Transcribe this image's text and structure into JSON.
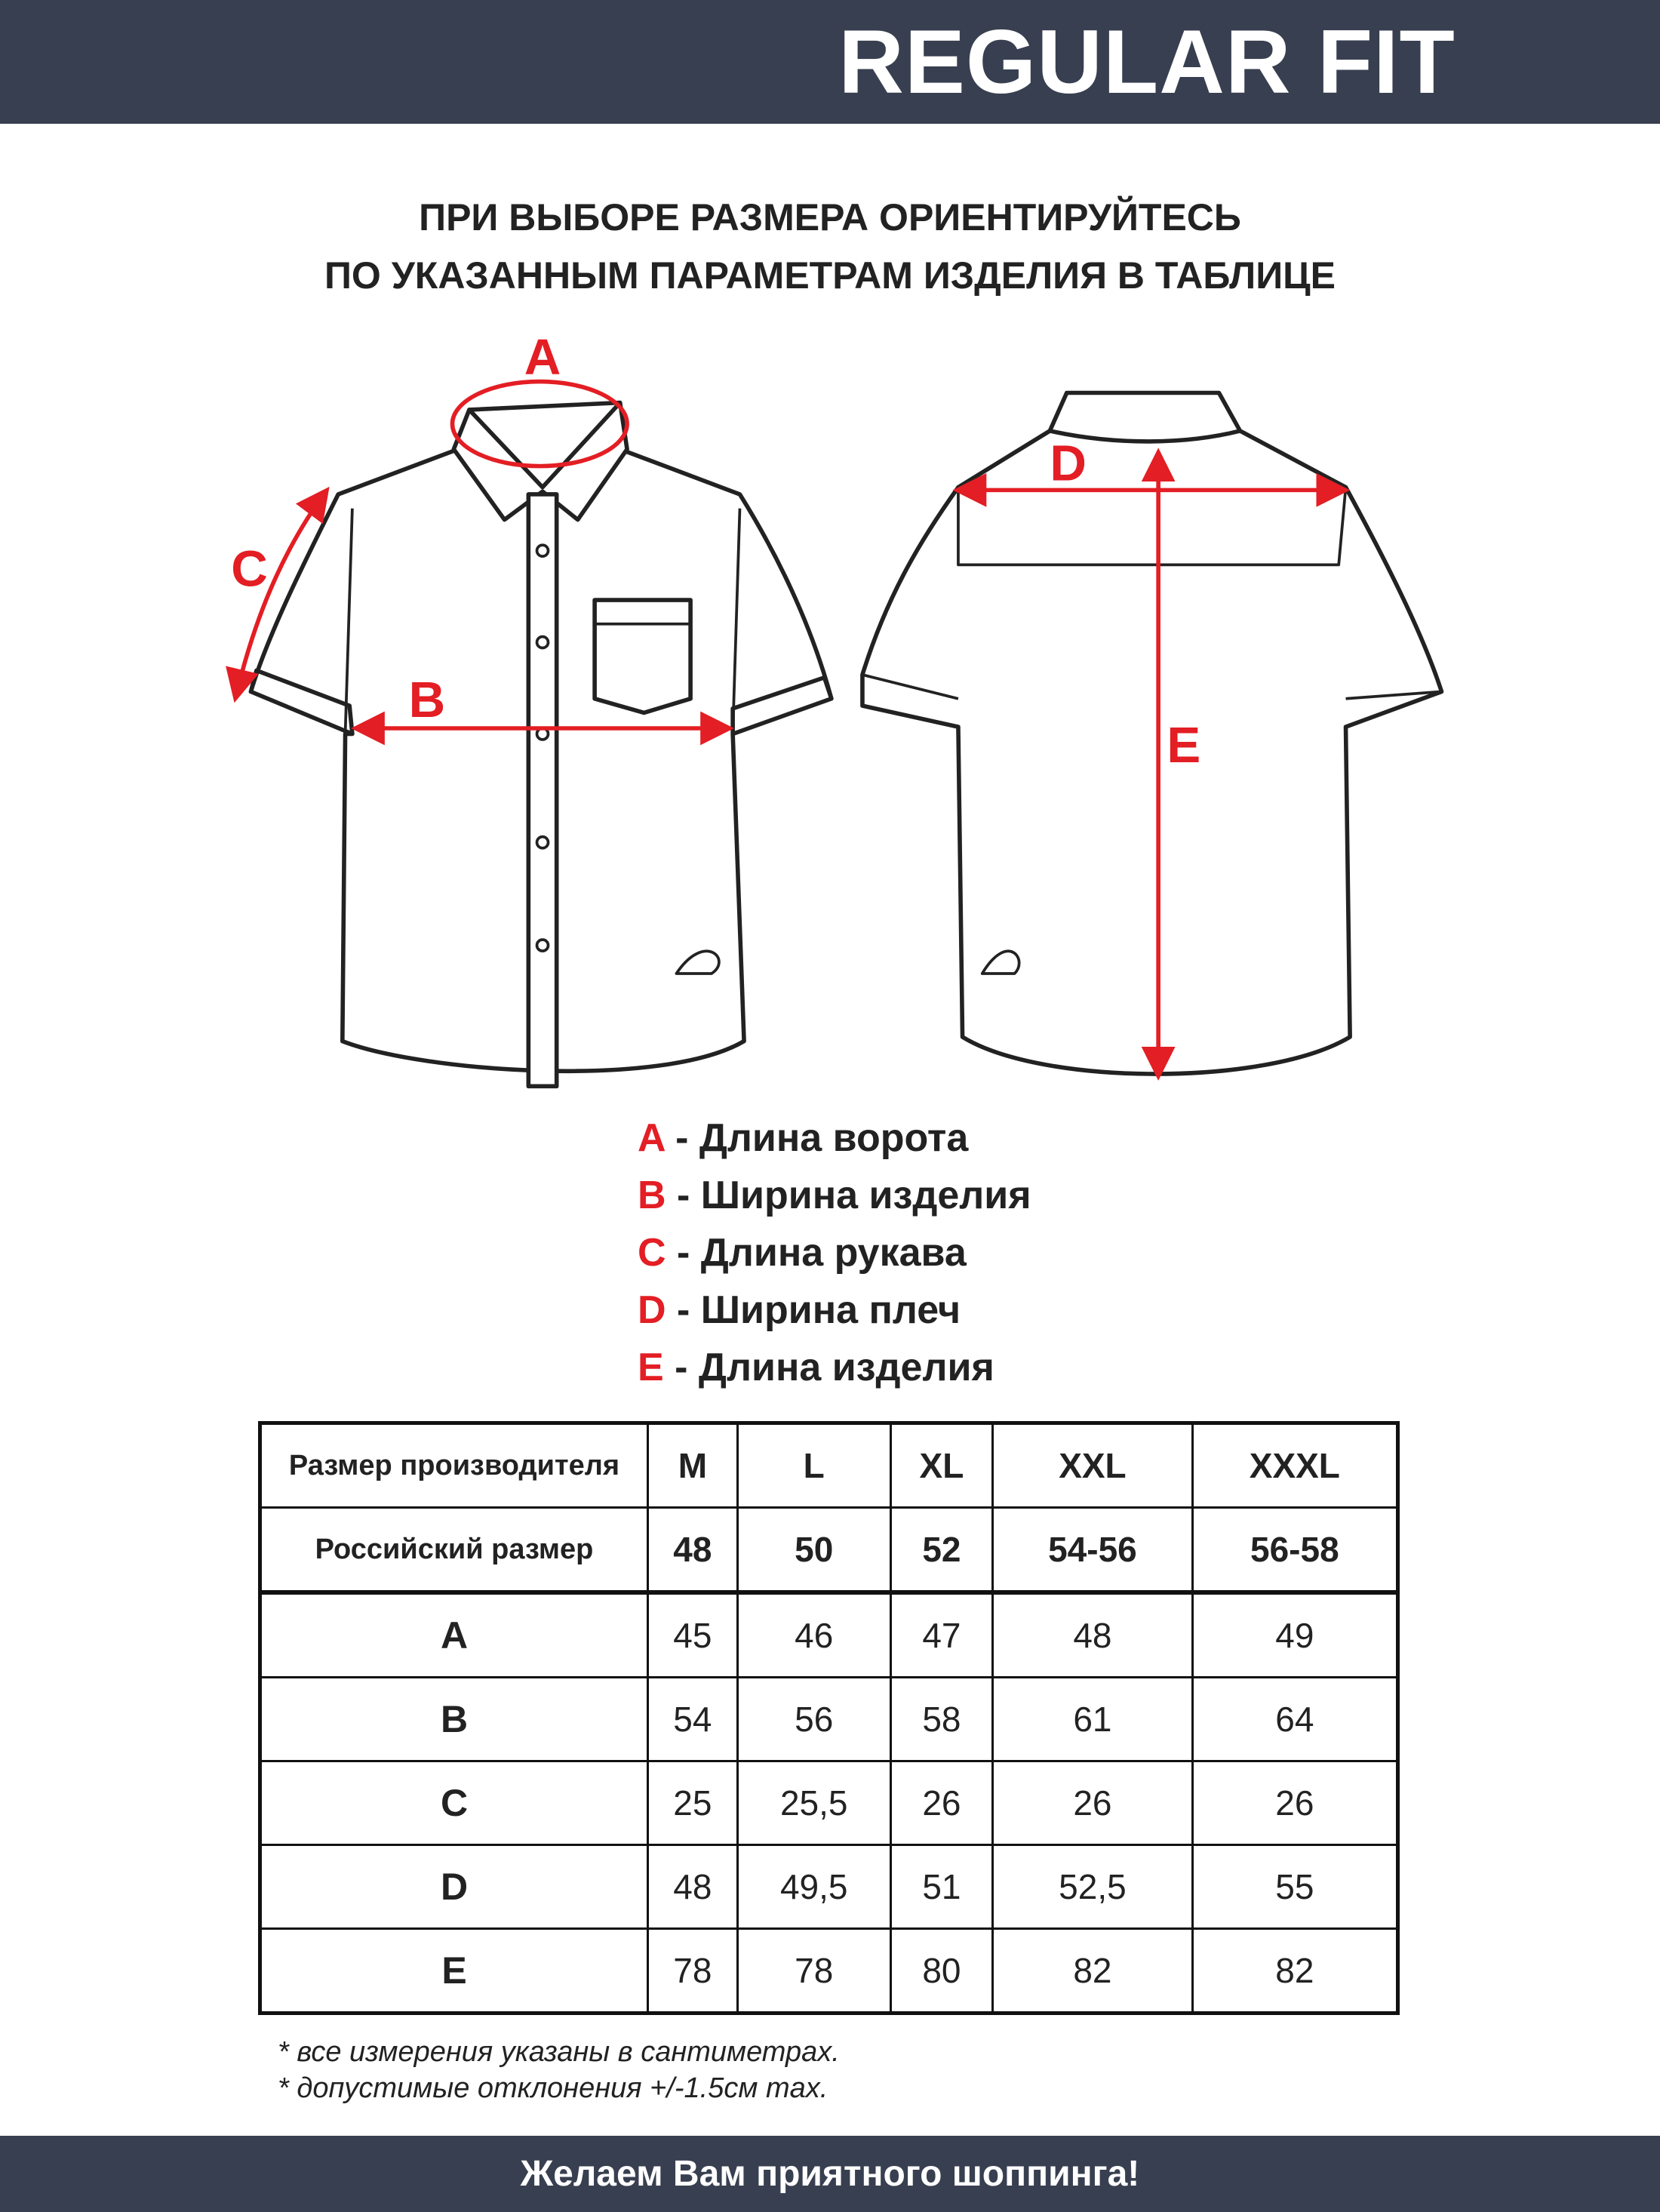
{
  "header": {
    "title": "REGULAR FIT"
  },
  "subtitle": {
    "line1": "ПРИ ВЫБОРЕ РАЗМЕРА ОРИЕНТИРУЙТЕСЬ",
    "line2": "ПО УКАЗАННЫМ ПАРАМЕТРАМ ИЗДЕЛИЯ В ТАБЛИЦЕ"
  },
  "diagram": {
    "labels": {
      "a": "A",
      "b": "B",
      "c": "C",
      "d": "D",
      "e": "E"
    },
    "accent_color": "#e31e24"
  },
  "legend": [
    {
      "letter": "A",
      "text": " - Длина ворота"
    },
    {
      "letter": "B",
      "text": " - Ширина изделия"
    },
    {
      "letter": "C",
      "text": " - Длина рукава"
    },
    {
      "letter": "D",
      "text": " - Ширина плеч"
    },
    {
      "letter": "E",
      "text": " - Длина изделия"
    }
  ],
  "table": {
    "header_label": "Размер производителя",
    "sizes": [
      "M",
      "L",
      "XL",
      "XXL",
      "XXXL"
    ],
    "ru_label": "Российский размер",
    "ru_sizes": [
      "48",
      "50",
      "52",
      "54-56",
      "56-58"
    ],
    "rows": [
      {
        "letter": "A",
        "values": [
          "45",
          "46",
          "47",
          "48",
          "49"
        ]
      },
      {
        "letter": "B",
        "values": [
          "54",
          "56",
          "58",
          "61",
          "64"
        ]
      },
      {
        "letter": "C",
        "values": [
          "25",
          "25,5",
          "26",
          "26",
          "26"
        ]
      },
      {
        "letter": "D",
        "values": [
          "48",
          "49,5",
          "51",
          "52,5",
          "55"
        ]
      },
      {
        "letter": "E",
        "values": [
          "78",
          "78",
          "80",
          "82",
          "82"
        ]
      }
    ]
  },
  "notes": [
    "* все измерения указаны в сантиметрах.",
    "* допустимые отклонения +/-1.5см max."
  ],
  "footer": {
    "text": "Желаем Вам приятного шоппинга!"
  },
  "colors": {
    "header_bg": "#383f50",
    "accent": "#e31e24"
  }
}
